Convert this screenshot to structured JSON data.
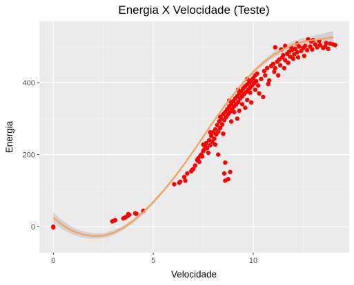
{
  "chart_data": {
    "type": "scatter",
    "title": "Energia X Velocidade (Teste)",
    "xlabel": "Velocidade",
    "ylabel": "Energia",
    "xlim": [
      -0.7,
      14.8
    ],
    "ylim": [
      -72,
      570
    ],
    "x_ticks": [
      0,
      5,
      10
    ],
    "y_ticks": [
      0,
      200,
      400
    ],
    "grid": true,
    "legend": "none",
    "colors": {
      "panel": "#ebebeb",
      "grid_major": "#ffffff",
      "points": "#ff0000",
      "fit_line": "#f4a460",
      "ribbon": "#bebebe"
    },
    "series": [
      {
        "kind": "points",
        "points": [
          [
            0,
            0
          ],
          [
            0,
            -2
          ],
          [
            2.95,
            15
          ],
          [
            3.05,
            17
          ],
          [
            3.1,
            18
          ],
          [
            3.5,
            23
          ],
          [
            3.6,
            26
          ],
          [
            3.7,
            29
          ],
          [
            3.8,
            33
          ],
          [
            3.75,
            35
          ],
          [
            4.1,
            37
          ],
          [
            4.15,
            36
          ],
          [
            4.5,
            44
          ],
          [
            6.05,
            118
          ],
          [
            6.3,
            122
          ],
          [
            6.35,
            125
          ],
          [
            6.55,
            138
          ],
          [
            6.7,
            148
          ],
          [
            6.9,
            154
          ],
          [
            6.95,
            158
          ],
          [
            7.1,
            170
          ],
          [
            7.2,
            185
          ],
          [
            7.35,
            196
          ],
          [
            7.4,
            200
          ],
          [
            7.45,
            195
          ],
          [
            7.5,
            210
          ],
          [
            7.55,
            214
          ],
          [
            7.6,
            224
          ],
          [
            7.65,
            232
          ],
          [
            7.7,
            218
          ],
          [
            7.8,
            240
          ],
          [
            7.85,
            226
          ],
          [
            7.9,
            252
          ],
          [
            7.95,
            236
          ],
          [
            8.0,
            262
          ],
          [
            8.05,
            244
          ],
          [
            8.1,
            270
          ],
          [
            8.15,
            256
          ],
          [
            8.2,
            282
          ],
          [
            8.25,
            264
          ],
          [
            8.3,
            292
          ],
          [
            8.35,
            274
          ],
          [
            8.4,
            300
          ],
          [
            8.45,
            284
          ],
          [
            8.5,
            312
          ],
          [
            8.55,
            296
          ],
          [
            8.6,
            318
          ],
          [
            8.65,
            304
          ],
          [
            8.7,
            326
          ],
          [
            8.75,
            312
          ],
          [
            8.8,
            334
          ],
          [
            8.85,
            320
          ],
          [
            8.9,
            340
          ],
          [
            8.95,
            326
          ],
          [
            9.0,
            348
          ],
          [
            9.05,
            334
          ],
          [
            9.1,
            356
          ],
          [
            9.15,
            340
          ],
          [
            9.2,
            362
          ],
          [
            9.25,
            346
          ],
          [
            9.3,
            370
          ],
          [
            9.35,
            356
          ],
          [
            9.4,
            376
          ],
          [
            9.45,
            362
          ],
          [
            9.5,
            384
          ],
          [
            9.55,
            368
          ],
          [
            9.6,
            390
          ],
          [
            9.65,
            374
          ],
          [
            9.7,
            395
          ],
          [
            9.75,
            380
          ],
          [
            9.8,
            400
          ],
          [
            9.85,
            386
          ],
          [
            9.9,
            406
          ],
          [
            9.95,
            392
          ],
          [
            10.0,
            412
          ],
          [
            10.05,
            398
          ],
          [
            10.1,
            420
          ],
          [
            10.15,
            404
          ],
          [
            7.3,
            180
          ],
          [
            7.75,
            205
          ],
          [
            8.1,
            228
          ],
          [
            8.5,
            258
          ],
          [
            8.9,
            292
          ],
          [
            9.3,
            322
          ],
          [
            9.7,
            352
          ],
          [
            10.1,
            380
          ],
          [
            10.5,
            360
          ],
          [
            10.3,
            370
          ],
          [
            8.25,
            200
          ],
          [
            8.6,
            178
          ],
          [
            8.75,
            132
          ],
          [
            8.6,
            128
          ],
          [
            8.55,
            148
          ],
          [
            8.85,
            152
          ],
          [
            9.2,
            300
          ],
          [
            9.6,
            330
          ],
          [
            9.9,
            345
          ],
          [
            6.6,
            128
          ],
          [
            7.0,
            160
          ],
          [
            7.25,
            190
          ],
          [
            7.5,
            228
          ],
          [
            7.85,
            262
          ],
          [
            8.35,
            305
          ],
          [
            8.8,
            350
          ],
          [
            9.25,
            380
          ],
          [
            9.7,
            410
          ],
          [
            10.2,
            425
          ],
          [
            10.55,
            432
          ],
          [
            10.7,
            440
          ],
          [
            10.9,
            446
          ],
          [
            11.0,
            452
          ],
          [
            11.1,
            440
          ],
          [
            11.2,
            458
          ],
          [
            11.3,
            464
          ],
          [
            11.35,
            448
          ],
          [
            11.45,
            470
          ],
          [
            11.5,
            476
          ],
          [
            11.6,
            462
          ],
          [
            11.7,
            480
          ],
          [
            11.8,
            486
          ],
          [
            11.85,
            472
          ],
          [
            11.95,
            490
          ],
          [
            12.05,
            478
          ],
          [
            12.1,
            494
          ],
          [
            12.2,
            484
          ],
          [
            12.3,
            500
          ],
          [
            12.4,
            488
          ],
          [
            12.5,
            496
          ],
          [
            12.6,
            502
          ],
          [
            12.7,
            490
          ],
          [
            12.85,
            500
          ],
          [
            12.95,
            492
          ],
          [
            13.1,
            506
          ],
          [
            13.2,
            498
          ],
          [
            13.35,
            504
          ],
          [
            13.5,
            496
          ],
          [
            13.6,
            500
          ],
          [
            13.75,
            494
          ],
          [
            13.85,
            508
          ],
          [
            14.0,
            506
          ],
          [
            14.1,
            504
          ],
          [
            10.4,
            410
          ],
          [
            10.6,
            420
          ],
          [
            10.8,
            406
          ],
          [
            11.05,
            430
          ],
          [
            11.25,
            420
          ],
          [
            11.55,
            440
          ],
          [
            11.75,
            455
          ],
          [
            12.0,
            466
          ],
          [
            12.25,
            470
          ],
          [
            12.55,
            474
          ],
          [
            12.75,
            520
          ],
          [
            12.9,
            514
          ],
          [
            13.0,
            518
          ],
          [
            13.3,
            516
          ],
          [
            13.65,
            510
          ],
          [
            11.1,
            498
          ],
          [
            11.4,
            492
          ],
          [
            11.6,
            502
          ],
          [
            11.9,
            498
          ],
          [
            12.2,
            508
          ],
          [
            9.05,
            318
          ],
          [
            9.45,
            340
          ],
          [
            9.85,
            372
          ],
          [
            10.25,
            392
          ],
          [
            10.75,
            396
          ]
        ]
      },
      {
        "kind": "fit",
        "x": [
          0,
          0.5,
          1,
          1.5,
          2,
          2.5,
          3,
          3.5,
          4,
          4.5,
          5,
          5.5,
          6,
          6.5,
          7,
          7.5,
          8,
          8.5,
          9,
          9.5,
          10,
          10.5,
          11,
          11.5,
          12,
          12.5,
          13,
          13.5,
          14
        ],
        "y": [
          25,
          3,
          -13,
          -22,
          -26,
          -25,
          -17,
          -3,
          16,
          40,
          68,
          99,
          133,
          170,
          209,
          250,
          291,
          330,
          366,
          400,
          430,
          455,
          476,
          493,
          505,
          513,
          518,
          522,
          526
        ],
        "lower": [
          10,
          -9,
          -23,
          -31,
          -34,
          -32,
          -24,
          -9,
          10,
          35,
          63,
          95,
          129,
          166,
          206,
          247,
          288,
          327,
          363,
          396,
          425,
          449,
          468,
          484,
          495,
          502,
          506,
          508,
          509
        ],
        "upper": [
          40,
          15,
          -3,
          -13,
          -18,
          -18,
          -10,
          3,
          22,
          45,
          73,
          103,
          137,
          174,
          212,
          253,
          294,
          333,
          369,
          404,
          435,
          461,
          484,
          502,
          515,
          524,
          530,
          536,
          543
        ]
      }
    ]
  }
}
